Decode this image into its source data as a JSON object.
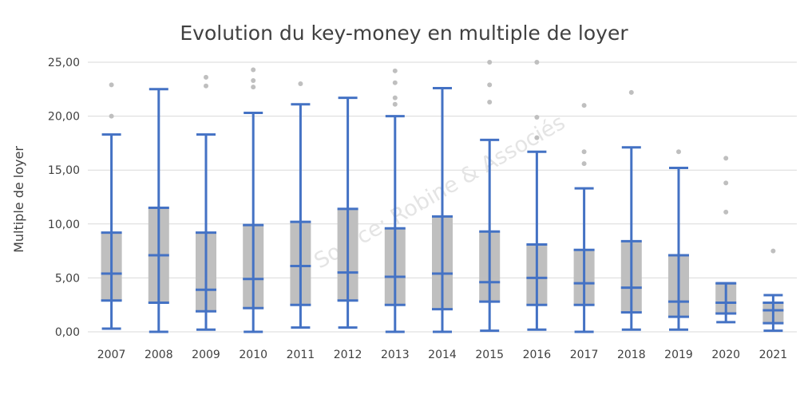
{
  "chart_data": {
    "type": "box",
    "title": "Evolution du key-money en multiple de loyer",
    "xlabel": "",
    "ylabel": "Multiple de loyer",
    "ylim": [
      0,
      25
    ],
    "yticks": [
      "0,00",
      "5,00",
      "10,00",
      "15,00",
      "20,00",
      "25,00"
    ],
    "ytick_values": [
      0,
      5,
      10,
      15,
      20,
      25
    ],
    "grid": true,
    "watermark": "Source: Robine & Associés",
    "colors": {
      "whisker": "#4472C4",
      "box": "#BFBFBF",
      "outlier": "#BFBFBF",
      "grid": "#D9D9D9",
      "text": "#404040"
    },
    "categories": [
      "2007",
      "2008",
      "2009",
      "2010",
      "2011",
      "2012",
      "2013",
      "2014",
      "2015",
      "2016",
      "2017",
      "2018",
      "2019",
      "2020",
      "2021"
    ],
    "boxes": [
      {
        "min": 0.3,
        "q1": 2.9,
        "median": 5.4,
        "q3": 9.2,
        "max": 18.3,
        "outliers": [
          20.0,
          22.9
        ]
      },
      {
        "min": 0.0,
        "q1": 2.7,
        "median": 7.1,
        "q3": 11.5,
        "max": 22.5,
        "outliers": []
      },
      {
        "min": 0.2,
        "q1": 1.9,
        "median": 3.9,
        "q3": 9.2,
        "max": 18.3,
        "outliers": [
          22.8,
          23.6
        ]
      },
      {
        "min": 0.0,
        "q1": 2.2,
        "median": 4.9,
        "q3": 9.9,
        "max": 20.3,
        "outliers": [
          22.7,
          23.3,
          24.3
        ]
      },
      {
        "min": 0.4,
        "q1": 2.5,
        "median": 6.1,
        "q3": 10.2,
        "max": 21.1,
        "outliers": [
          23.0
        ]
      },
      {
        "min": 0.4,
        "q1": 2.9,
        "median": 5.5,
        "q3": 11.4,
        "max": 21.7,
        "outliers": []
      },
      {
        "min": 0.0,
        "q1": 2.5,
        "median": 5.1,
        "q3": 9.6,
        "max": 20.0,
        "outliers": [
          21.1,
          21.7,
          23.1,
          24.2
        ]
      },
      {
        "min": 0.0,
        "q1": 2.1,
        "median": 5.4,
        "q3": 10.7,
        "max": 22.6,
        "outliers": []
      },
      {
        "min": 0.1,
        "q1": 2.8,
        "median": 4.6,
        "q3": 9.3,
        "max": 17.8,
        "outliers": [
          21.3,
          22.9,
          25.0
        ]
      },
      {
        "min": 0.2,
        "q1": 2.5,
        "median": 5.0,
        "q3": 8.1,
        "max": 16.7,
        "outliers": [
          18.0,
          19.9,
          25.0
        ]
      },
      {
        "min": 0.0,
        "q1": 2.5,
        "median": 4.5,
        "q3": 7.6,
        "max": 13.3,
        "outliers": [
          15.6,
          16.7,
          21.0
        ]
      },
      {
        "min": 0.2,
        "q1": 1.8,
        "median": 4.1,
        "q3": 8.4,
        "max": 17.1,
        "outliers": [
          22.2
        ]
      },
      {
        "min": 0.2,
        "q1": 1.4,
        "median": 2.8,
        "q3": 7.1,
        "max": 15.2,
        "outliers": [
          16.7
        ]
      },
      {
        "min": 0.9,
        "q1": 1.7,
        "median": 2.7,
        "q3": 4.5,
        "max": 4.5,
        "outliers": [
          11.1,
          13.8,
          16.1
        ]
      },
      {
        "min": 0.1,
        "q1": 0.8,
        "median": 2.0,
        "q3": 2.7,
        "max": 3.4,
        "outliers": [
          7.5
        ]
      }
    ]
  }
}
